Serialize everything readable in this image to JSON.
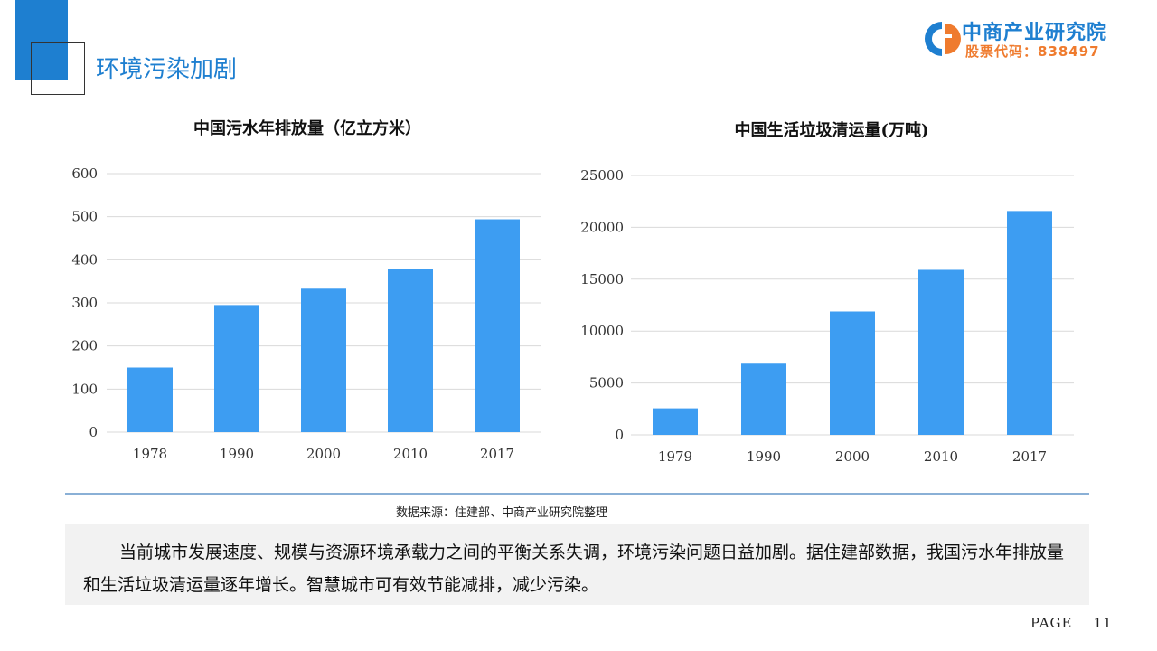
{
  "slide": {
    "title": "环境污染加剧",
    "source": "数据来源：住建部、中商产业研究院整理",
    "body": "当前城市发展速度、规模与资源环境承载力之间的平衡关系失调，环境污染问题日益加剧。据住建部数据，我国污水年排放量和生活垃圾清运量逐年增长。智慧城市可有效节能减排，减少污染。",
    "page_label": "PAGE",
    "page_number": "11"
  },
  "logo": {
    "name": "中商产业研究院",
    "code": "股票代码：838497",
    "colors": {
      "blue": "#1e7fd0",
      "orange": "#ef7b2e"
    }
  },
  "chart_data": [
    {
      "type": "bar",
      "title": "中国污水年排放量（亿立方米）",
      "categories": [
        "1978",
        "1990",
        "2000",
        "2010",
        "2017"
      ],
      "values": [
        150,
        295,
        333,
        379,
        494
      ],
      "ylim": [
        0,
        600
      ],
      "yticks": [
        0,
        100,
        200,
        300,
        400,
        500,
        600
      ],
      "grid": true,
      "color": "#3d9df2"
    },
    {
      "type": "bar",
      "title": "中国生活垃圾清运量(万吨)",
      "categories": [
        "1979",
        "1990",
        "2000",
        "2010",
        "2017"
      ],
      "values": [
        2560,
        6860,
        11890,
        15900,
        21570
      ],
      "ylim": [
        0,
        25000
      ],
      "yticks": [
        0,
        5000,
        10000,
        15000,
        20000,
        25000
      ],
      "grid": true,
      "color": "#3d9df2"
    }
  ]
}
